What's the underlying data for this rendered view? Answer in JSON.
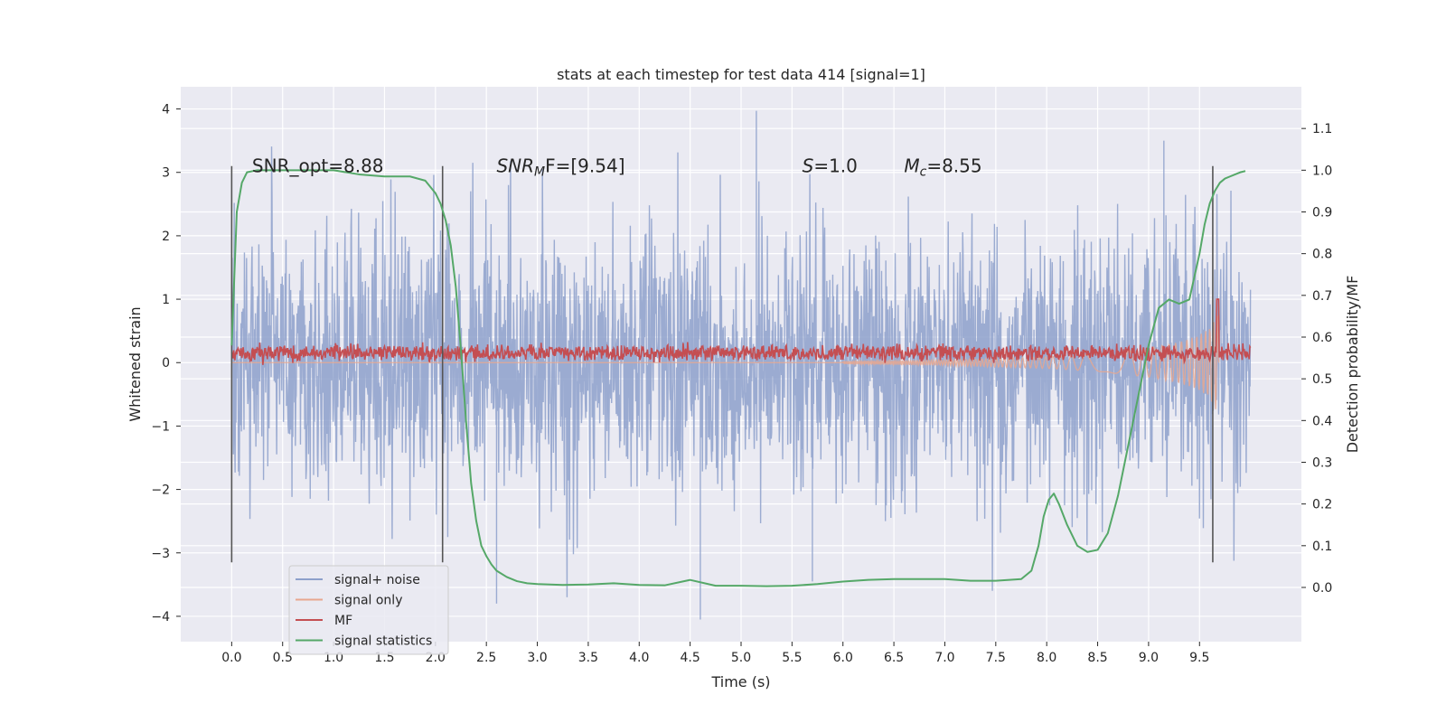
{
  "chart_data": {
    "type": "line",
    "title": "stats at each timestep for test data 414 [signal=1]",
    "xlabel": "Time (s)",
    "ylabel": "Whitened strain",
    "ylabel_right": "Detection probability/MF",
    "xlim": [
      -0.5,
      10.5
    ],
    "ylim": [
      -4.4,
      4.35
    ],
    "ylim_right": [
      -0.13,
      1.2
    ],
    "x_ticks": [
      "0.0",
      "0.5",
      "1.0",
      "1.5",
      "2.0",
      "2.5",
      "3.0",
      "3.5",
      "4.0",
      "4.5",
      "5.0",
      "5.5",
      "6.0",
      "6.5",
      "7.0",
      "7.5",
      "8.0",
      "8.5",
      "9.0",
      "9.5"
    ],
    "y_ticks": [
      "4",
      "3",
      "2",
      "1",
      "0",
      "−1",
      "−2",
      "−3",
      "−4"
    ],
    "y_right_ticks": [
      "1.1",
      "1.0",
      "0.9",
      "0.8",
      "0.7",
      "0.6",
      "0.5",
      "0.4",
      "0.3",
      "0.2",
      "0.1",
      "0.0"
    ],
    "grid": true,
    "legend_position": "bottom-left",
    "annotations": [
      {
        "text": "SNR_opt=8.88",
        "x": 0.2,
        "y": 3.1
      },
      {
        "text_parts": [
          "SNR",
          "M",
          "F=[9.54]"
        ],
        "x": 2.6,
        "y": 3.1
      },
      {
        "text_parts": [
          "S",
          "=1.0"
        ],
        "x": 5.6,
        "y": 3.1
      },
      {
        "text_parts": [
          "M",
          "c",
          "=8.55"
        ],
        "x": 6.6,
        "y": 3.1
      }
    ],
    "vlines": [
      {
        "x": 0.0,
        "y": [
          -3.15,
          3.1
        ]
      },
      {
        "x": 2.07,
        "y": [
          -3.15,
          3.1
        ]
      },
      {
        "x": 9.63,
        "y": [
          -3.15,
          3.1
        ]
      }
    ],
    "series": [
      {
        "name": "signal+ noise",
        "color": "#8DA0CB",
        "axis": "left",
        "x_range": [
          0.0,
          10.0
        ],
        "std": 1.0,
        "notable_peaks": [
          {
            "x": 5.15,
            "y": 3.97
          },
          {
            "x": 4.6,
            "y": -4.05
          },
          {
            "x": 2.6,
            "y": -3.8
          },
          {
            "x": 5.7,
            "y": -3.45
          },
          {
            "x": 9.15,
            "y": 3.5
          }
        ]
      },
      {
        "name": "signal only",
        "color": "#E8A78F",
        "axis": "left",
        "envelope": [
          [
            6.0,
            0.02
          ],
          [
            7.0,
            0.04
          ],
          [
            7.5,
            0.06
          ],
          [
            8.0,
            0.08
          ],
          [
            8.5,
            0.12
          ],
          [
            9.0,
            0.2
          ],
          [
            9.3,
            0.28
          ],
          [
            9.5,
            0.38
          ],
          [
            9.6,
            0.48
          ],
          [
            9.65,
            0.62
          ],
          [
            9.68,
            0.7
          ],
          [
            9.69,
            0.0
          ]
        ]
      },
      {
        "name": "MF",
        "color": "#C44E52",
        "axis": "left",
        "baseline": 0.15,
        "spread": 0.1,
        "spike": {
          "x": 9.68,
          "y": 1.0
        }
      },
      {
        "name": "signal statistics",
        "color": "#55A868",
        "axis": "right",
        "x": [
          0.0,
          0.05,
          0.1,
          0.15,
          0.25,
          0.5,
          0.75,
          1.0,
          1.25,
          1.5,
          1.75,
          1.9,
          2.0,
          2.05,
          2.1,
          2.15,
          2.2,
          2.25,
          2.3,
          2.35,
          2.4,
          2.45,
          2.5,
          2.55,
          2.6,
          2.7,
          2.8,
          2.9,
          3.0,
          3.25,
          3.5,
          3.75,
          4.0,
          4.25,
          4.5,
          4.75,
          5.0,
          5.25,
          5.5,
          5.75,
          6.0,
          6.25,
          6.5,
          6.75,
          7.0,
          7.25,
          7.5,
          7.75,
          7.85,
          7.92,
          7.97,
          8.02,
          8.07,
          8.12,
          8.2,
          8.3,
          8.4,
          8.5,
          8.6,
          8.7,
          8.8,
          8.9,
          9.0,
          9.1,
          9.2,
          9.3,
          9.4,
          9.5,
          9.55,
          9.6,
          9.65,
          9.7,
          9.75,
          9.8,
          9.85,
          9.9,
          9.95
        ],
        "y": [
          0.58,
          0.9,
          0.97,
          0.995,
          1.0,
          1.0,
          1.0,
          1.0,
          0.99,
          0.985,
          0.985,
          0.975,
          0.945,
          0.92,
          0.88,
          0.82,
          0.72,
          0.57,
          0.4,
          0.25,
          0.16,
          0.1,
          0.075,
          0.055,
          0.04,
          0.025,
          0.015,
          0.01,
          0.008,
          0.006,
          0.007,
          0.01,
          0.006,
          0.005,
          0.018,
          0.004,
          0.004,
          0.003,
          0.004,
          0.008,
          0.014,
          0.018,
          0.02,
          0.02,
          0.02,
          0.016,
          0.016,
          0.02,
          0.04,
          0.1,
          0.17,
          0.21,
          0.225,
          0.2,
          0.15,
          0.1,
          0.085,
          0.09,
          0.13,
          0.22,
          0.34,
          0.46,
          0.58,
          0.67,
          0.69,
          0.68,
          0.69,
          0.8,
          0.87,
          0.92,
          0.95,
          0.97,
          0.98,
          0.985,
          0.99,
          0.995,
          0.998
        ]
      }
    ]
  }
}
